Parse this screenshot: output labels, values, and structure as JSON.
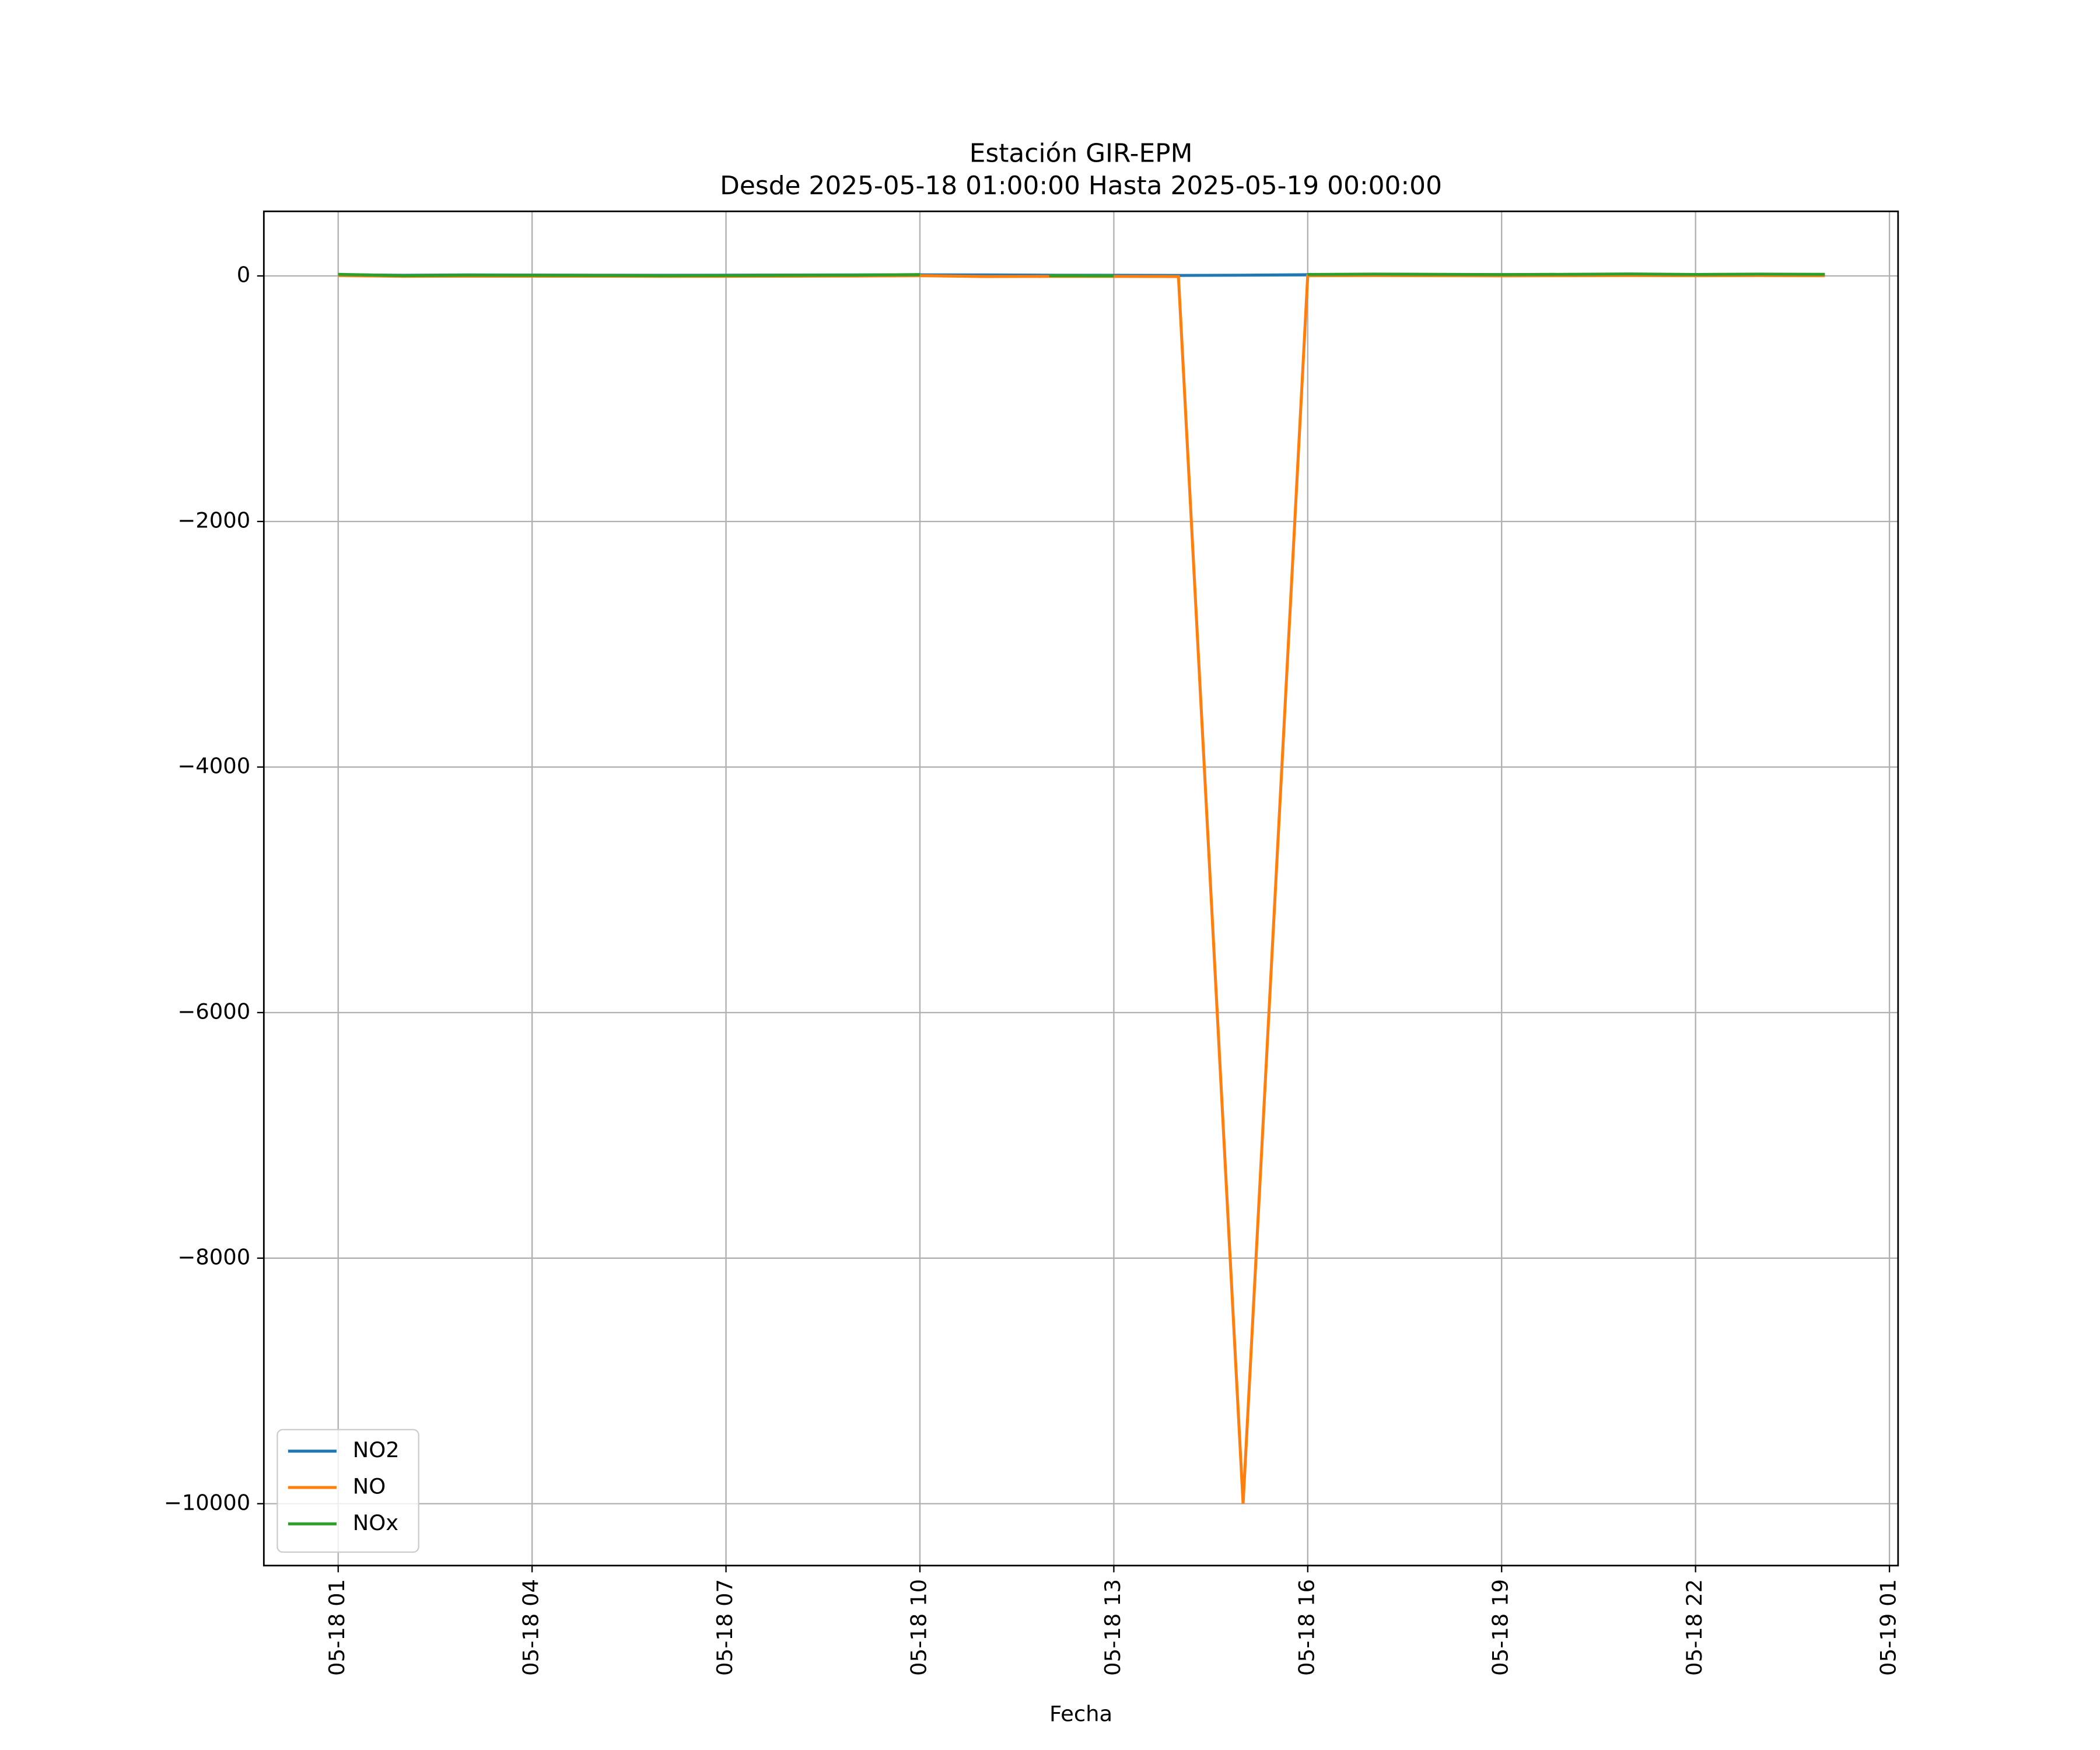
{
  "chart_data": {
    "type": "line",
    "title": "Estación GIR-EPM",
    "subtitle": "Desde 2025-05-18 01:00:00 Hasta 2025-05-19 00:00:00",
    "x_label": "Fecha",
    "x": [
      "2025-05-18 01:00",
      "2025-05-18 02:00",
      "2025-05-18 03:00",
      "2025-05-18 04:00",
      "2025-05-18 05:00",
      "2025-05-18 06:00",
      "2025-05-18 07:00",
      "2025-05-18 08:00",
      "2025-05-18 09:00",
      "2025-05-18 10:00",
      "2025-05-18 11:00",
      "2025-05-18 12:00",
      "2025-05-18 13:00",
      "2025-05-18 14:00",
      "2025-05-18 15:00",
      "2025-05-18 16:00",
      "2025-05-18 17:00",
      "2025-05-18 18:00",
      "2025-05-18 19:00",
      "2025-05-18 20:00",
      "2025-05-18 21:00",
      "2025-05-18 22:00",
      "2025-05-18 23:00",
      "2025-05-19 00:00"
    ],
    "series": [
      {
        "name": "NO2",
        "color": "#1f77b4",
        "values": [
          10,
          5,
          8,
          7,
          6,
          5,
          6,
          7,
          8,
          9,
          8,
          6,
          5,
          4,
          6,
          10,
          12,
          11,
          10,
          11,
          13,
          10,
          12,
          11
        ]
      },
      {
        "name": "NO",
        "color": "#ff7f0e",
        "values": [
          3,
          -3,
          -2,
          -2,
          -2,
          -3,
          -3,
          -2,
          -1,
          2,
          -5,
          -4,
          -4,
          -5,
          -10000,
          2,
          3,
          2,
          1,
          2,
          3,
          2,
          3,
          2
        ]
      },
      {
        "name": "NOx",
        "color": "#2ca02c",
        "values": [
          13,
          2,
          6,
          5,
          4,
          2,
          3,
          5,
          7,
          11,
          null,
          2,
          1,
          null,
          null,
          12,
          15,
          13,
          11,
          13,
          16,
          12,
          15,
          13
        ]
      }
    ],
    "xlim": [
      "2025-05-17 23:51",
      "2025-05-19 01:08"
    ],
    "xticks": [
      {
        "value": "2025-05-18 01:00",
        "label": "05-18 01"
      },
      {
        "value": "2025-05-18 04:00",
        "label": "05-18 04"
      },
      {
        "value": "2025-05-18 07:00",
        "label": "05-18 07"
      },
      {
        "value": "2025-05-18 10:00",
        "label": "05-18 10"
      },
      {
        "value": "2025-05-18 13:00",
        "label": "05-18 13"
      },
      {
        "value": "2025-05-18 16:00",
        "label": "05-18 16"
      },
      {
        "value": "2025-05-18 19:00",
        "label": "05-18 19"
      },
      {
        "value": "2025-05-18 22:00",
        "label": "05-18 22"
      },
      {
        "value": "2025-05-19 01:00",
        "label": "05-19 01"
      }
    ],
    "ylim": [
      -10504,
      526
    ],
    "yticks": [
      {
        "value": 0,
        "label": "0"
      },
      {
        "value": -2000,
        "label": "−2000"
      },
      {
        "value": -4000,
        "label": "−4000"
      },
      {
        "value": -6000,
        "label": "−6000"
      },
      {
        "value": -8000,
        "label": "−8000"
      },
      {
        "value": -10000,
        "label": "−10000"
      }
    ],
    "grid": true,
    "legend": "lower left"
  }
}
